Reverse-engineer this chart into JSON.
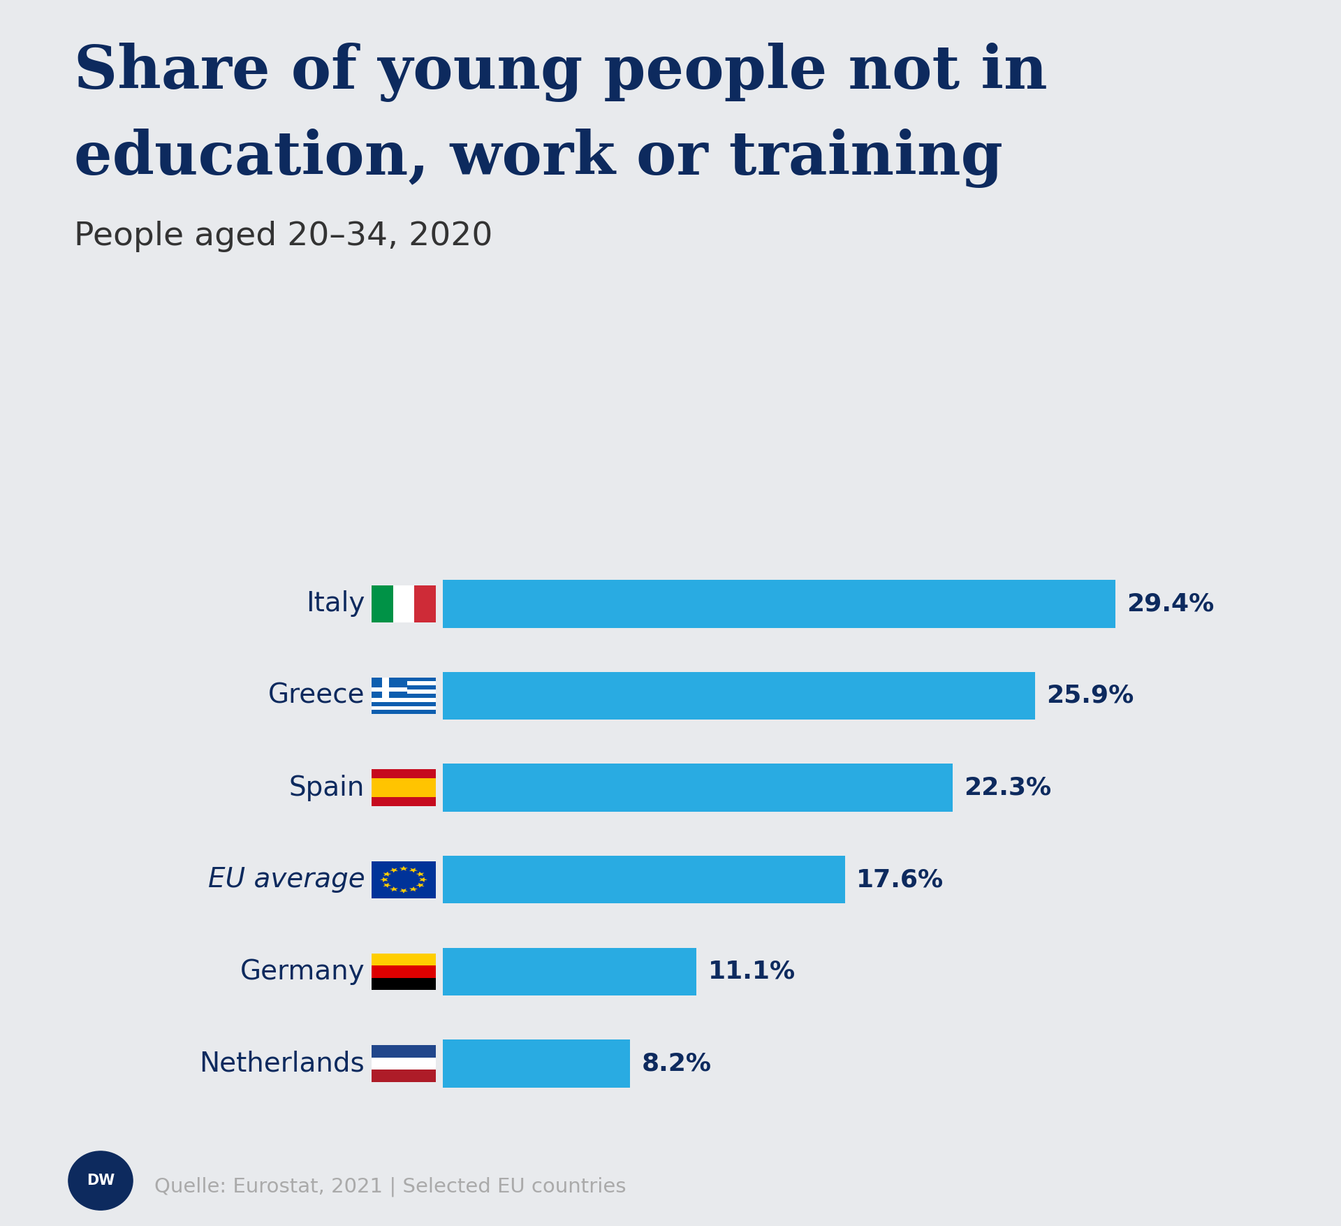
{
  "title_line1": "Share of young people not in",
  "title_line2": "education, work or training",
  "subtitle": "People aged 20–34, 2020",
  "source": "Quelle: Eurostat, 2021 | Selected EU countries",
  "background_color": "#e8eaed",
  "bar_color": "#29abe2",
  "title_color": "#0d2a5e",
  "subtitle_color": "#333333",
  "value_color": "#0d2a5e",
  "source_color": "#aaaaaa",
  "categories": [
    "Italy",
    "Greece",
    "Spain",
    "EU average",
    "Germany",
    "Netherlands"
  ],
  "values": [
    29.4,
    25.9,
    22.3,
    17.6,
    11.1,
    8.2
  ],
  "labels": [
    "29.4%",
    "25.9%",
    "22.3%",
    "17.6%",
    "11.1%",
    "8.2%"
  ],
  "bar_height": 0.52,
  "xlim": [
    0,
    34
  ],
  "figwidth": 19.2,
  "figheight": 17.55,
  "dpi": 100
}
